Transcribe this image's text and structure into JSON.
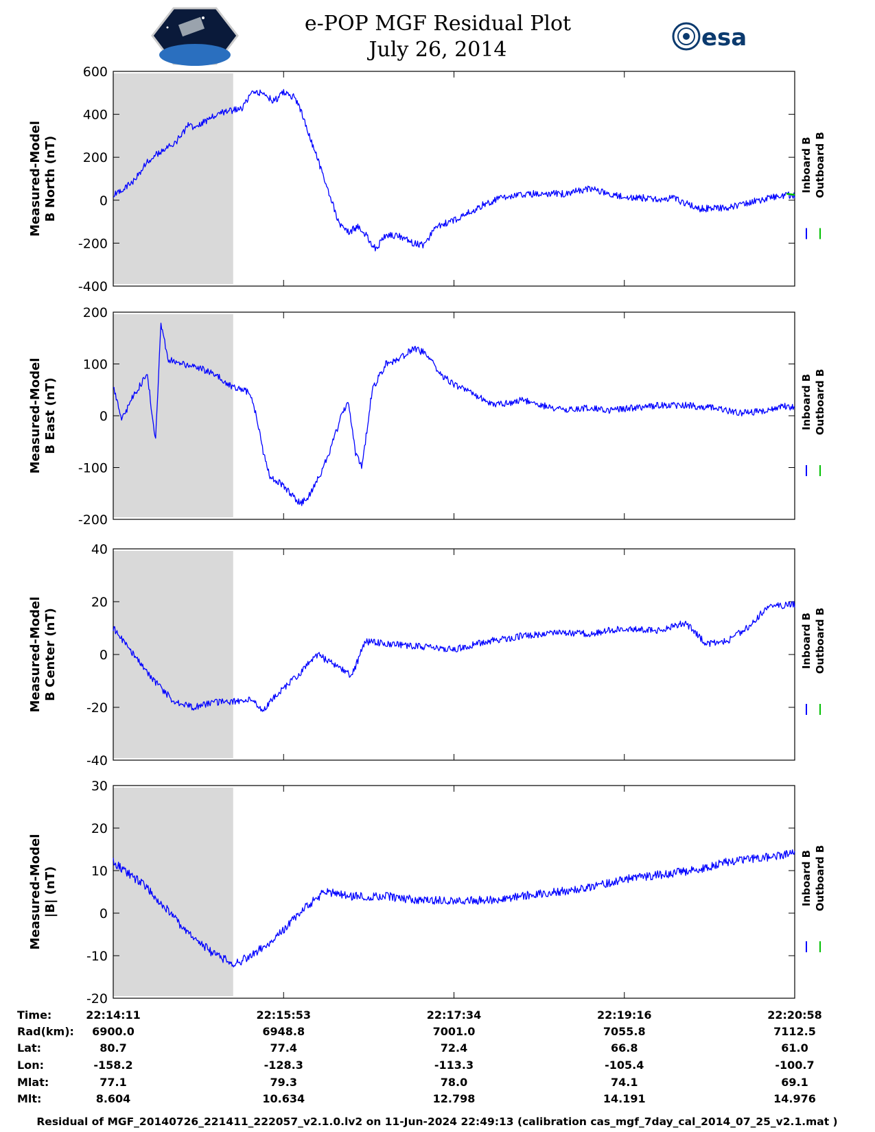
{
  "header": {
    "title": "e-POP MGF Residual Plot",
    "date": "July 26, 2014",
    "logo_left": "CASSIOPE",
    "logo_right": "esa"
  },
  "colors": {
    "inboard": "#0000ff",
    "outboard": "#00c000",
    "shade": "#d9d9d9",
    "axis": "#000000"
  },
  "legend": {
    "inboard": "Inboard B",
    "outboard": "Outboard B"
  },
  "chart_data": [
    {
      "type": "line",
      "ylabel": [
        "Measured-Model",
        "B North (nT)"
      ],
      "ylim": [
        -400,
        600
      ],
      "yticks": [
        600,
        400,
        200,
        0,
        -200,
        -400
      ],
      "shaded_x": [
        0,
        0.176
      ],
      "series": [
        {
          "name": "Inboard B",
          "color": "#0000ff",
          "noise": 4,
          "points": [
            [
              0,
              20
            ],
            [
              0.01,
              40
            ],
            [
              0.03,
              90
            ],
            [
              0.05,
              180
            ],
            [
              0.07,
              230
            ],
            [
              0.09,
              260
            ],
            [
              0.11,
              350
            ],
            [
              0.12,
              330
            ],
            [
              0.14,
              380
            ],
            [
              0.16,
              410
            ],
            [
              0.176,
              420
            ],
            [
              0.19,
              430
            ],
            [
              0.205,
              505
            ],
            [
              0.22,
              500
            ],
            [
              0.235,
              460
            ],
            [
              0.25,
              500
            ],
            [
              0.265,
              480
            ],
            [
              0.275,
              420
            ],
            [
              0.29,
              280
            ],
            [
              0.31,
              100
            ],
            [
              0.33,
              -100
            ],
            [
              0.345,
              -150
            ],
            [
              0.36,
              -120
            ],
            [
              0.375,
              -180
            ],
            [
              0.385,
              -230
            ],
            [
              0.4,
              -160
            ],
            [
              0.42,
              -170
            ],
            [
              0.44,
              -200
            ],
            [
              0.455,
              -210
            ],
            [
              0.475,
              -120
            ],
            [
              0.495,
              -100
            ],
            [
              0.52,
              -60
            ],
            [
              0.55,
              -10
            ],
            [
              0.58,
              20
            ],
            [
              0.62,
              30
            ],
            [
              0.66,
              30
            ],
            [
              0.7,
              55
            ],
            [
              0.74,
              20
            ],
            [
              0.78,
              10
            ],
            [
              0.8,
              0
            ],
            [
              0.82,
              10
            ],
            [
              0.86,
              -40
            ],
            [
              0.9,
              -35
            ],
            [
              0.94,
              -5
            ],
            [
              0.98,
              20
            ],
            [
              1.0,
              25
            ]
          ]
        },
        {
          "name": "Outboard B",
          "color": "#00c000",
          "noise": 0,
          "points": [
            [
              0.988,
              30
            ],
            [
              1.0,
              25
            ]
          ]
        }
      ]
    },
    {
      "type": "line",
      "ylabel": [
        "Measured-Model",
        "B East (nT)"
      ],
      "ylim": [
        -200,
        200
      ],
      "yticks": [
        200,
        100,
        0,
        -100,
        -200
      ],
      "shaded_x": [
        0,
        0.176
      ],
      "series": [
        {
          "name": "Inboard B",
          "color": "#0000ff",
          "noise": 4,
          "points": [
            [
              0,
              60
            ],
            [
              0.012,
              -10
            ],
            [
              0.03,
              40
            ],
            [
              0.05,
              80
            ],
            [
              0.062,
              -50
            ],
            [
              0.07,
              180
            ],
            [
              0.08,
              110
            ],
            [
              0.1,
              100
            ],
            [
              0.12,
              95
            ],
            [
              0.15,
              80
            ],
            [
              0.176,
              55
            ],
            [
              0.2,
              45
            ],
            [
              0.21,
              0
            ],
            [
              0.22,
              -70
            ],
            [
              0.23,
              -120
            ],
            [
              0.245,
              -130
            ],
            [
              0.26,
              -150
            ],
            [
              0.275,
              -170
            ],
            [
              0.29,
              -150
            ],
            [
              0.305,
              -110
            ],
            [
              0.32,
              -60
            ],
            [
              0.335,
              0
            ],
            [
              0.345,
              30
            ],
            [
              0.355,
              -70
            ],
            [
              0.365,
              -100
            ],
            [
              0.38,
              50
            ],
            [
              0.4,
              100
            ],
            [
              0.42,
              110
            ],
            [
              0.44,
              130
            ],
            [
              0.46,
              120
            ],
            [
              0.48,
              80
            ],
            [
              0.5,
              60
            ],
            [
              0.53,
              40
            ],
            [
              0.56,
              20
            ],
            [
              0.6,
              30
            ],
            [
              0.63,
              20
            ],
            [
              0.66,
              10
            ],
            [
              0.7,
              15
            ],
            [
              0.73,
              10
            ],
            [
              0.76,
              15
            ],
            [
              0.8,
              20
            ],
            [
              0.84,
              20
            ],
            [
              0.88,
              15
            ],
            [
              0.92,
              5
            ],
            [
              0.96,
              10
            ],
            [
              0.98,
              20
            ],
            [
              1.0,
              15
            ]
          ]
        }
      ]
    },
    {
      "type": "line",
      "ylabel": [
        "Measured-Model",
        "B Center (nT)"
      ],
      "ylim": [
        -40,
        40
      ],
      "yticks": [
        40,
        20,
        0,
        -20,
        -40
      ],
      "shaded_x": [
        0,
        0.176
      ],
      "series": [
        {
          "name": "Inboard B",
          "color": "#0000ff",
          "noise": 4,
          "points": [
            [
              0,
              10
            ],
            [
              0.03,
              0
            ],
            [
              0.06,
              -10
            ],
            [
              0.09,
              -18
            ],
            [
              0.12,
              -20
            ],
            [
              0.15,
              -18
            ],
            [
              0.176,
              -18
            ],
            [
              0.2,
              -17
            ],
            [
              0.22,
              -21
            ],
            [
              0.24,
              -15
            ],
            [
              0.27,
              -8
            ],
            [
              0.3,
              0
            ],
            [
              0.33,
              -5
            ],
            [
              0.35,
              -8
            ],
            [
              0.37,
              5
            ],
            [
              0.4,
              4
            ],
            [
              0.45,
              3
            ],
            [
              0.5,
              2
            ],
            [
              0.55,
              5
            ],
            [
              0.6,
              7
            ],
            [
              0.65,
              8
            ],
            [
              0.7,
              8
            ],
            [
              0.75,
              10
            ],
            [
              0.8,
              9
            ],
            [
              0.84,
              12
            ],
            [
              0.87,
              4
            ],
            [
              0.9,
              5
            ],
            [
              0.93,
              10
            ],
            [
              0.96,
              18
            ],
            [
              1.0,
              19
            ]
          ]
        }
      ]
    },
    {
      "type": "line",
      "ylabel": [
        "Measured-Model",
        "|B| (nT)"
      ],
      "ylim": [
        -20,
        30
      ],
      "yticks": [
        30,
        20,
        10,
        0,
        -10,
        -20
      ],
      "shaded_x": [
        0,
        0.176
      ],
      "series": [
        {
          "name": "Inboard B",
          "color": "#0000ff",
          "noise": 5,
          "points": [
            [
              0,
              12
            ],
            [
              0.05,
              6
            ],
            [
              0.1,
              -3
            ],
            [
              0.15,
              -10
            ],
            [
              0.18,
              -12
            ],
            [
              0.2,
              -10
            ],
            [
              0.22,
              -8
            ],
            [
              0.25,
              -4
            ],
            [
              0.28,
              1
            ],
            [
              0.31,
              5
            ],
            [
              0.35,
              4
            ],
            [
              0.4,
              4
            ],
            [
              0.45,
              3
            ],
            [
              0.5,
              3
            ],
            [
              0.55,
              3
            ],
            [
              0.6,
              4
            ],
            [
              0.65,
              5
            ],
            [
              0.7,
              6
            ],
            [
              0.75,
              8
            ],
            [
              0.8,
              9
            ],
            [
              0.85,
              10
            ],
            [
              0.9,
              12
            ],
            [
              0.95,
              13
            ],
            [
              1.0,
              14
            ]
          ]
        }
      ]
    }
  ],
  "orbit_table": {
    "labels": [
      "Time:",
      "Rad(km):",
      "Lat:",
      "Lon:",
      "Mlat:",
      "Mlt:"
    ],
    "columns": [
      [
        "22:14:11",
        "6900.0",
        "80.7",
        "-158.2",
        "77.1",
        "8.604"
      ],
      [
        "22:15:53",
        "6948.8",
        "77.4",
        "-128.3",
        "79.3",
        "10.634"
      ],
      [
        "22:17:34",
        "7001.0",
        "72.4",
        "-113.3",
        "78.0",
        "12.798"
      ],
      [
        "22:19:16",
        "7055.8",
        "66.8",
        "-105.4",
        "74.1",
        "14.191"
      ],
      [
        "22:20:58",
        "7112.5",
        "61.0",
        "-100.7",
        "69.1",
        "14.976"
      ]
    ]
  },
  "footer": "Residual of MGF_20140726_221411_222057_v2.1.0.lv2 on 11-Jun-2024 22:49:13 (calibration cas_mgf_7day_cal_2014_07_25_v2.1.mat )"
}
